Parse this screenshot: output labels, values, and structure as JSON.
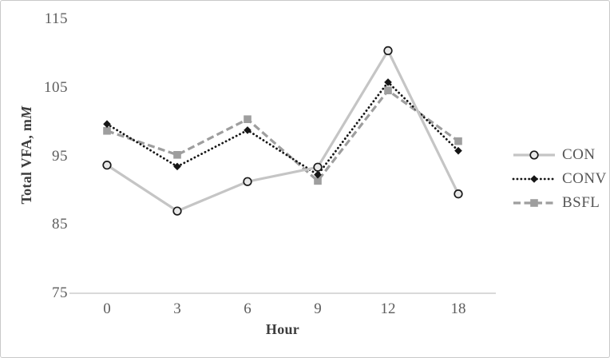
{
  "figure": {
    "background": "#ffffff",
    "border_color": "#c9c9c9"
  },
  "chart_data": {
    "type": "line",
    "title": "",
    "xlabel": "Hour",
    "ylabel": "Total VFA, mM",
    "ylabel_prefix": "Total VFA, m",
    "ylabel_italic_suffix": "M",
    "x_categories": [
      "0",
      "3",
      "6",
      "9",
      "12",
      "18"
    ],
    "yticks": [
      115,
      105,
      95,
      85,
      75
    ],
    "ylim": [
      75,
      115
    ],
    "grid": false,
    "legend_position": "right",
    "axis_line_color": "#c2c2c2",
    "tick_text_color": "#5d5d5d",
    "series": [
      {
        "name": "CON",
        "values": [
          93.7,
          87.0,
          91.3,
          93.4,
          110.4,
          89.5
        ],
        "color": "#c5c5c5",
        "style": "solid",
        "marker": "open-circle",
        "marker_fill": "#e9e9e9",
        "marker_stroke": "#1a1a1a"
      },
      {
        "name": "CONV",
        "values": [
          99.7,
          93.5,
          98.8,
          92.3,
          105.8,
          95.8
        ],
        "color": "#161616",
        "style": "dotted",
        "marker": "diamond",
        "marker_fill": "#161616",
        "marker_stroke": "#161616"
      },
      {
        "name": "BSFL",
        "values": [
          98.7,
          95.2,
          100.4,
          91.4,
          104.6,
          97.2
        ],
        "color": "#9e9e9e",
        "style": "dashed",
        "marker": "square",
        "marker_fill": "#9e9e9e",
        "marker_stroke": "#9e9e9e"
      }
    ]
  }
}
